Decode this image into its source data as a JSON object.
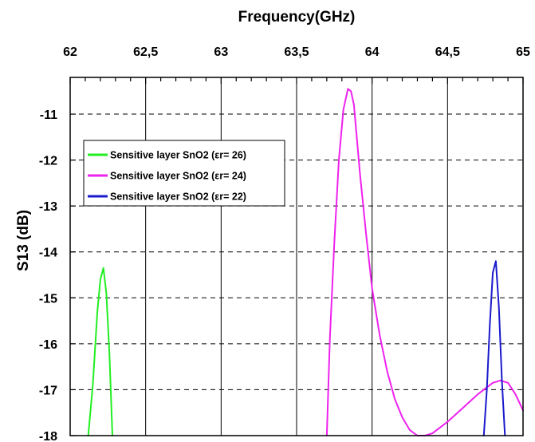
{
  "chart_data": {
    "type": "line",
    "xlabel": "Frequency(GHz)",
    "ylabel": "S13 (dB)",
    "xlim": [
      62,
      65
    ],
    "ylim": [
      -18,
      -10.2
    ],
    "x_ticks": [
      62,
      62.5,
      63,
      63.5,
      64,
      64.5,
      65
    ],
    "x_tick_labels": [
      "62",
      "62,5",
      "63",
      "63,5",
      "64",
      "64,5",
      "65"
    ],
    "y_ticks": [
      -11,
      -12,
      -13,
      -14,
      -15,
      -16,
      -17,
      -18
    ],
    "y_tick_labels": [
      "-11",
      "-12",
      "-13",
      "-14",
      "-15",
      "-16",
      "-17",
      "-18"
    ],
    "x_axis_position": "top",
    "grid": {
      "vertical": "solid",
      "horizontal": "dashed"
    },
    "legend_position": "upper-left",
    "series": [
      {
        "name": "Sensitive layer SnO2 (εr= 26)",
        "color": "#22ee22",
        "x": [
          62.12,
          62.15,
          62.18,
          62.2,
          62.22,
          62.24,
          62.26,
          62.28
        ],
        "y": [
          -18.0,
          -16.9,
          -15.3,
          -14.6,
          -14.35,
          -14.9,
          -16.2,
          -18.0
        ]
      },
      {
        "name": "Sensitive layer SnO2 (εr= 24)",
        "color": "#ee22ee",
        "x": [
          63.7,
          63.72,
          63.75,
          63.78,
          63.81,
          63.84,
          63.86,
          63.88,
          63.92,
          63.96,
          64.0,
          64.05,
          64.1,
          64.15,
          64.2,
          64.25,
          64.3,
          64.35,
          64.4,
          64.5,
          64.6,
          64.7,
          64.8,
          64.85,
          64.9,
          64.95,
          65.0
        ],
        "y": [
          -18.0,
          -15.9,
          -13.8,
          -12.0,
          -10.9,
          -10.45,
          -10.5,
          -10.8,
          -12.3,
          -13.6,
          -14.8,
          -15.8,
          -16.6,
          -17.2,
          -17.6,
          -17.88,
          -18.0,
          -18.0,
          -17.95,
          -17.7,
          -17.4,
          -17.1,
          -16.85,
          -16.8,
          -16.85,
          -17.1,
          -17.45
        ]
      },
      {
        "name": "Sensitive layer SnO2 (εr= 22)",
        "color": "#1a1acc",
        "x": [
          64.74,
          64.76,
          64.78,
          64.8,
          64.82,
          64.84,
          64.86,
          64.88
        ],
        "y": [
          -18.0,
          -17.0,
          -15.6,
          -14.45,
          -14.2,
          -15.2,
          -16.8,
          -18.0
        ]
      }
    ]
  }
}
